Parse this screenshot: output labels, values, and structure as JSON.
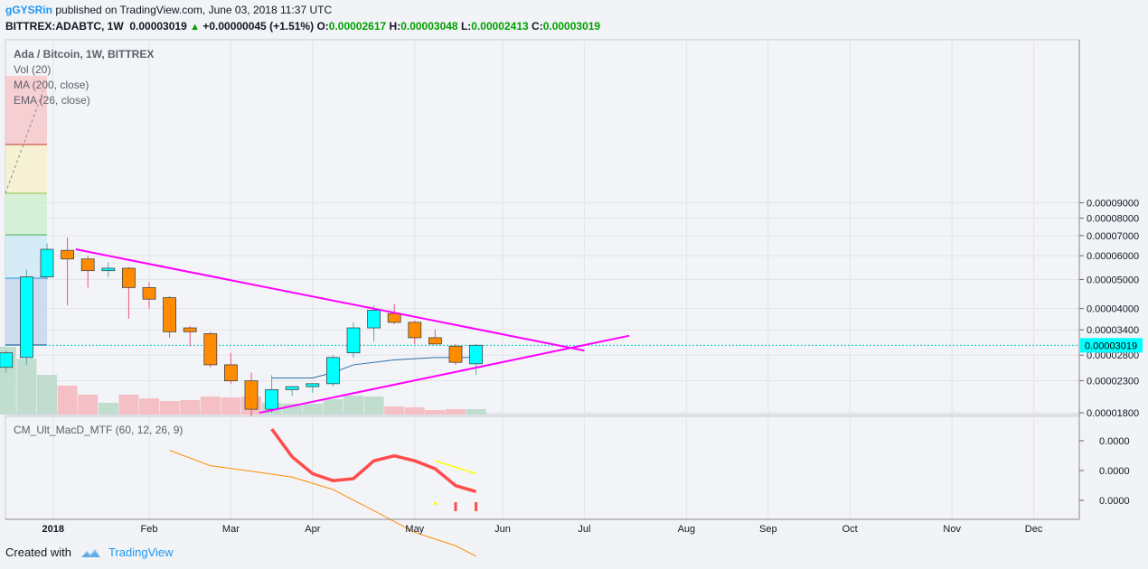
{
  "header": {
    "author": "gGYSRin",
    "published_text": "published on TradingView.com, June 03, 2018 11:37 UTC",
    "symbol": "BITTREX:ADABTC, 1W",
    "last_price": "0.00003019",
    "change": "+0.00000045 (+1.51%)",
    "open_label": "O:",
    "open": "0.00002617",
    "high_label": "H:",
    "high": "0.00003048",
    "low_label": "L:",
    "low": "0.00002413",
    "close_label": "C:",
    "close": "0.00003019"
  },
  "legend": {
    "title": "Ada / Bitcoin, 1W, BITTREX",
    "vol": "Vol (20)",
    "ma": "MA (200, close)",
    "ema": "EMA (26, close)",
    "macd": "CM_Ult_MacD_MTF (60, 12, 26, 9)"
  },
  "footer": {
    "created_with": "Created with",
    "brand": "TradingView"
  },
  "colors": {
    "up": "#00ffff",
    "down": "#ff8c00",
    "trendline": "#ff00ff",
    "ma200": "#ff8c00",
    "ema26": "#2e6da4",
    "macd": "#ff4b4b",
    "signal": "#ffff00",
    "vol_up": "#c1ddd0",
    "vol_down": "#f4c0c6"
  },
  "chart_data": {
    "type": "candlestick",
    "price_axis": {
      "ticks": [
        "0.00009000",
        "0.00008000",
        "0.00007000",
        "0.00006000",
        "0.00005000",
        "0.00004000",
        "0.00003400",
        "0.00002800",
        "0.00002300",
        "0.00001800"
      ],
      "tick_values": [
        9.0,
        8.0,
        7.0,
        6.0,
        5.0,
        4.0,
        3.4,
        2.8,
        2.3,
        1.8
      ],
      "last_label": "0.00003019",
      "last_value": 3.019,
      "unit_note": "values ×1e-5 BTC"
    },
    "time_axis": {
      "labels": [
        "2018",
        "Feb",
        "Mar",
        "Apr",
        "May",
        "Jun",
        "Jul",
        "Aug",
        "Sep",
        "Oct",
        "Nov",
        "Dec"
      ],
      "label_week_index": [
        0.3,
        5,
        9,
        13,
        18,
        22.3,
        26.3,
        31.3,
        35.3,
        39.3,
        44.3,
        48.3
      ]
    },
    "candles": [
      {
        "w": -2,
        "o": 2.55,
        "h": 2.9,
        "l": 2.45,
        "c": 2.85
      },
      {
        "w": -1,
        "o": 2.75,
        "h": 5.4,
        "l": 2.6,
        "c": 5.1
      },
      {
        "w": 0,
        "o": 5.1,
        "h": 6.6,
        "l": 5.0,
        "c": 6.3
      },
      {
        "w": 1,
        "o": 6.25,
        "h": 6.9,
        "l": 4.1,
        "c": 5.85
      },
      {
        "w": 2,
        "o": 5.85,
        "h": 6.0,
        "l": 4.7,
        "c": 5.35
      },
      {
        "w": 3,
        "o": 5.35,
        "h": 5.7,
        "l": 5.1,
        "c": 5.45
      },
      {
        "w": 4,
        "o": 5.45,
        "h": 5.5,
        "l": 3.7,
        "c": 4.7
      },
      {
        "w": 5,
        "o": 4.7,
        "h": 4.9,
        "l": 4.0,
        "c": 4.3
      },
      {
        "w": 6,
        "o": 4.35,
        "h": 4.4,
        "l": 3.2,
        "c": 3.35
      },
      {
        "w": 7,
        "o": 3.45,
        "h": 3.5,
        "l": 3.0,
        "c": 3.35
      },
      {
        "w": 8,
        "o": 3.3,
        "h": 3.35,
        "l": 2.55,
        "c": 2.6
      },
      {
        "w": 9,
        "o": 2.6,
        "h": 2.85,
        "l": 2.25,
        "c": 2.3
      },
      {
        "w": 10,
        "o": 2.3,
        "h": 2.45,
        "l": 1.75,
        "c": 1.85
      },
      {
        "w": 11,
        "o": 1.85,
        "h": 2.4,
        "l": 1.8,
        "c": 2.15
      },
      {
        "w": 12,
        "o": 2.15,
        "h": 2.2,
        "l": 2.05,
        "c": 2.2
      },
      {
        "w": 13,
        "o": 2.2,
        "h": 2.25,
        "l": 2.1,
        "c": 2.25
      },
      {
        "w": 14,
        "o": 2.25,
        "h": 2.8,
        "l": 2.2,
        "c": 2.75
      },
      {
        "w": 15,
        "o": 2.85,
        "h": 3.6,
        "l": 2.75,
        "c": 3.45
      },
      {
        "w": 16,
        "o": 3.45,
        "h": 4.1,
        "l": 3.1,
        "c": 3.95
      },
      {
        "w": 17,
        "o": 3.85,
        "h": 4.15,
        "l": 3.55,
        "c": 3.6
      },
      {
        "w": 18,
        "o": 3.6,
        "h": 3.65,
        "l": 3.05,
        "c": 3.2
      },
      {
        "w": 19,
        "o": 3.2,
        "h": 3.4,
        "l": 3.05,
        "c": 3.05
      },
      {
        "w": 20,
        "o": 3.0,
        "h": 3.05,
        "l": 2.6,
        "c": 2.65
      },
      {
        "w": 21,
        "o": 2.62,
        "h": 3.05,
        "l": 2.41,
        "c": 3.02
      }
    ],
    "volume": [
      {
        "w": -2,
        "v": 0.75,
        "up": true
      },
      {
        "w": -1,
        "v": 0.62,
        "up": true
      },
      {
        "w": 0,
        "v": 0.44,
        "up": true
      },
      {
        "w": 1,
        "v": 0.32,
        "up": false
      },
      {
        "w": 2,
        "v": 0.22,
        "up": false
      },
      {
        "w": 3,
        "v": 0.13,
        "up": true
      },
      {
        "w": 4,
        "v": 0.22,
        "up": false
      },
      {
        "w": 5,
        "v": 0.18,
        "up": false
      },
      {
        "w": 6,
        "v": 0.15,
        "up": false
      },
      {
        "w": 7,
        "v": 0.16,
        "up": false
      },
      {
        "w": 8,
        "v": 0.2,
        "up": false
      },
      {
        "w": 9,
        "v": 0.19,
        "up": false
      },
      {
        "w": 10,
        "v": 0.2,
        "up": false
      },
      {
        "w": 11,
        "v": 0.13,
        "up": true
      },
      {
        "w": 12,
        "v": 0.12,
        "up": true
      },
      {
        "w": 13,
        "v": 0.12,
        "up": true
      },
      {
        "w": 14,
        "v": 0.17,
        "up": true
      },
      {
        "w": 15,
        "v": 0.21,
        "up": true
      },
      {
        "w": 16,
        "v": 0.2,
        "up": true
      },
      {
        "w": 17,
        "v": 0.09,
        "up": false
      },
      {
        "w": 18,
        "v": 0.08,
        "up": false
      },
      {
        "w": 19,
        "v": 0.05,
        "up": false
      },
      {
        "w": 20,
        "v": 0.06,
        "up": false
      },
      {
        "w": 21,
        "v": 0.06,
        "up": true
      }
    ],
    "ma200": [
      [
        6,
        1.35
      ],
      [
        8,
        1.2
      ],
      [
        10,
        1.15
      ],
      [
        12,
        1.1
      ],
      [
        14,
        1.0
      ],
      [
        16,
        0.85
      ],
      [
        18,
        0.72
      ],
      [
        20,
        0.65
      ],
      [
        21,
        0.6
      ]
    ],
    "ema26": [
      [
        11,
        2.35
      ],
      [
        13,
        2.35
      ],
      [
        14,
        2.45
      ],
      [
        15,
        2.6
      ],
      [
        17,
        2.7
      ],
      [
        19,
        2.75
      ],
      [
        21,
        2.75
      ]
    ],
    "trendlines": [
      {
        "from": [
          1.4,
          6.3
        ],
        "to": [
          26.3,
          2.9
        ]
      },
      {
        "from": [
          10.4,
          1.8
        ],
        "to": [
          28.5,
          3.25
        ]
      }
    ],
    "macd": {
      "axis_ticks": [
        "0.0000",
        "0.0000",
        "0.0000"
      ],
      "line": [
        [
          11,
          0.9
        ],
        [
          12,
          0.62
        ],
        [
          13,
          0.45
        ],
        [
          14,
          0.38
        ],
        [
          15,
          0.4
        ],
        [
          16,
          0.58
        ],
        [
          17,
          0.63
        ],
        [
          18,
          0.58
        ],
        [
          19,
          0.5
        ],
        [
          20,
          0.33
        ],
        [
          21,
          0.27
        ]
      ],
      "signal": [
        [
          19,
          0.58
        ],
        [
          21,
          0.45
        ]
      ],
      "histogram": [
        {
          "w": 19,
          "v": 0.05,
          "color": "#ffff00"
        },
        {
          "w": 20,
          "v": 0.18,
          "color": "#ff4b4b"
        },
        {
          "w": 21,
          "v": 0.18,
          "color": "#ff4b4b"
        }
      ]
    }
  }
}
